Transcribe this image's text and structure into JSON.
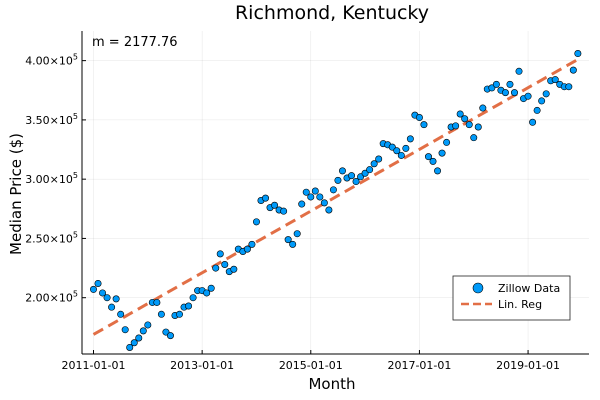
{
  "chart_data": {
    "type": "scatter",
    "title": "Richmond, Kentucky",
    "xlabel": "Month",
    "ylabel": "Median Price ($)",
    "annotation": "m = 2177.76",
    "x_ticks": [
      "2011-01-01",
      "2013-01-01",
      "2015-01-01",
      "2017-01-01",
      "2019-01-01"
    ],
    "y_ticks": [
      {
        "value": 200000,
        "base": "2.00×10",
        "exp": "5"
      },
      {
        "value": 250000,
        "base": "2.50×10",
        "exp": "5"
      },
      {
        "value": 300000,
        "base": "3.00×10",
        "exp": "5"
      },
      {
        "value": 350000,
        "base": "3.50×10",
        "exp": "5"
      },
      {
        "value": 400000,
        "base": "4.00×10",
        "exp": "5"
      }
    ],
    "xlim": [
      "2010-10-15",
      "2020-02-15"
    ],
    "ylim": [
      152500,
      425000
    ],
    "grid": true,
    "legend_position": "bottom-right",
    "series": [
      {
        "name": "Zillow Data",
        "kind": "scatter",
        "color": "#009AF9",
        "x": [
          "2011-01",
          "2011-02",
          "2011-03",
          "2011-04",
          "2011-05",
          "2011-06",
          "2011-07",
          "2011-08",
          "2011-09",
          "2011-10",
          "2011-11",
          "2011-12",
          "2012-01",
          "2012-02",
          "2012-03",
          "2012-04",
          "2012-05",
          "2012-06",
          "2012-07",
          "2012-08",
          "2012-09",
          "2012-10",
          "2012-11",
          "2012-12",
          "2013-01",
          "2013-02",
          "2013-03",
          "2013-04",
          "2013-05",
          "2013-06",
          "2013-07",
          "2013-08",
          "2013-09",
          "2013-10",
          "2013-11",
          "2013-12",
          "2014-01",
          "2014-02",
          "2014-03",
          "2014-04",
          "2014-05",
          "2014-06",
          "2014-07",
          "2014-08",
          "2014-09",
          "2014-10",
          "2014-11",
          "2014-12",
          "2015-01",
          "2015-02",
          "2015-03",
          "2015-04",
          "2015-05",
          "2015-06",
          "2015-07",
          "2015-08",
          "2015-09",
          "2015-10",
          "2015-11",
          "2015-12",
          "2016-01",
          "2016-02",
          "2016-03",
          "2016-04",
          "2016-05",
          "2016-06",
          "2016-07",
          "2016-08",
          "2016-09",
          "2016-10",
          "2016-11",
          "2016-12",
          "2017-01",
          "2017-02",
          "2017-03",
          "2017-04",
          "2017-05",
          "2017-06",
          "2017-07",
          "2017-08",
          "2017-09",
          "2017-10",
          "2017-11",
          "2017-12",
          "2018-01",
          "2018-02",
          "2018-03",
          "2018-04",
          "2018-05",
          "2018-06",
          "2018-07",
          "2018-08",
          "2018-09",
          "2018-10",
          "2018-11",
          "2018-12",
          "2019-01",
          "2019-02",
          "2019-03",
          "2019-04",
          "2019-05",
          "2019-06",
          "2019-07",
          "2019-08",
          "2019-09",
          "2019-10",
          "2019-11",
          "2019-12"
        ],
        "y": [
          207000,
          212000,
          204000,
          200000,
          192000,
          199000,
          186000,
          173000,
          158000,
          162000,
          166000,
          172000,
          177000,
          196000,
          196000,
          186000,
          171000,
          168000,
          185000,
          186000,
          192000,
          193000,
          200000,
          206000,
          206000,
          204000,
          208000,
          225000,
          237000,
          228000,
          222000,
          224000,
          241000,
          239000,
          241000,
          245000,
          264000,
          282000,
          284000,
          276000,
          278000,
          274000,
          273000,
          249000,
          245000,
          254000,
          279000,
          289000,
          285000,
          290000,
          285000,
          280000,
          274000,
          291000,
          299000,
          307000,
          301000,
          303000,
          298000,
          302000,
          305000,
          308000,
          313000,
          317000,
          330000,
          329000,
          327000,
          324000,
          320000,
          326000,
          334000,
          354000,
          352000,
          346000,
          319000,
          315000,
          307000,
          322000,
          331000,
          344000,
          345000,
          355000,
          351000,
          346000,
          335000,
          344000,
          360000,
          376000,
          377000,
          380000,
          375000,
          373000,
          380000,
          373000,
          391000,
          368000,
          370000,
          348000,
          358000,
          366000,
          372000,
          383000,
          384000,
          380000,
          378000,
          378000,
          392000,
          406000
        ]
      },
      {
        "name": "Lin. Reg",
        "kind": "line",
        "color": "#E26F46",
        "dash": true,
        "x": [
          "2011-01",
          "2019-12"
        ],
        "y": [
          169000,
          401000
        ]
      }
    ]
  }
}
